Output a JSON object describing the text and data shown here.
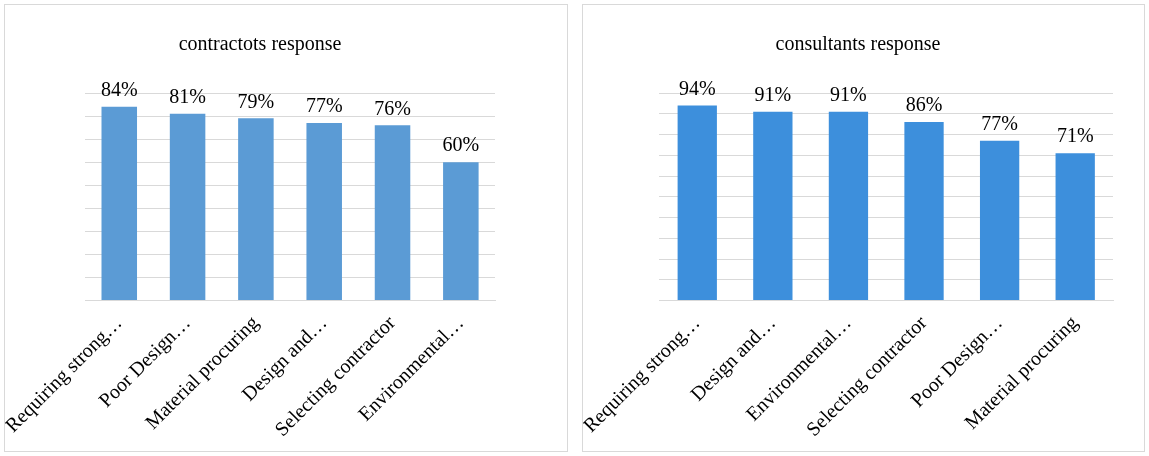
{
  "chart_data": [
    {
      "type": "bar",
      "title": "contractots response",
      "categories": [
        "Requiring strong…",
        "Poor Design…",
        "Material procuring",
        "Design and…",
        "Selecting contractor",
        "Environmental…"
      ],
      "values": [
        84,
        81,
        79,
        77,
        76,
        60
      ],
      "value_labels": [
        "84%",
        "81%",
        "79%",
        "77%",
        "76%",
        "60%"
      ],
      "color": "#5b9bd5",
      "grid": "y",
      "tick_labels": "x"
    },
    {
      "type": "bar",
      "title": "consultants response",
      "categories": [
        "Requiring strong…",
        "Design and…",
        "Environmental…",
        "Selecting contractor",
        "Poor Design…",
        "Material procuring"
      ],
      "values": [
        94,
        91,
        91,
        86,
        77,
        71
      ],
      "value_labels": [
        "94%",
        "91%",
        "91%",
        "86%",
        "77%",
        "71%"
      ],
      "color": "#3d8fdc",
      "grid": "y",
      "tick_labels": "x"
    }
  ]
}
